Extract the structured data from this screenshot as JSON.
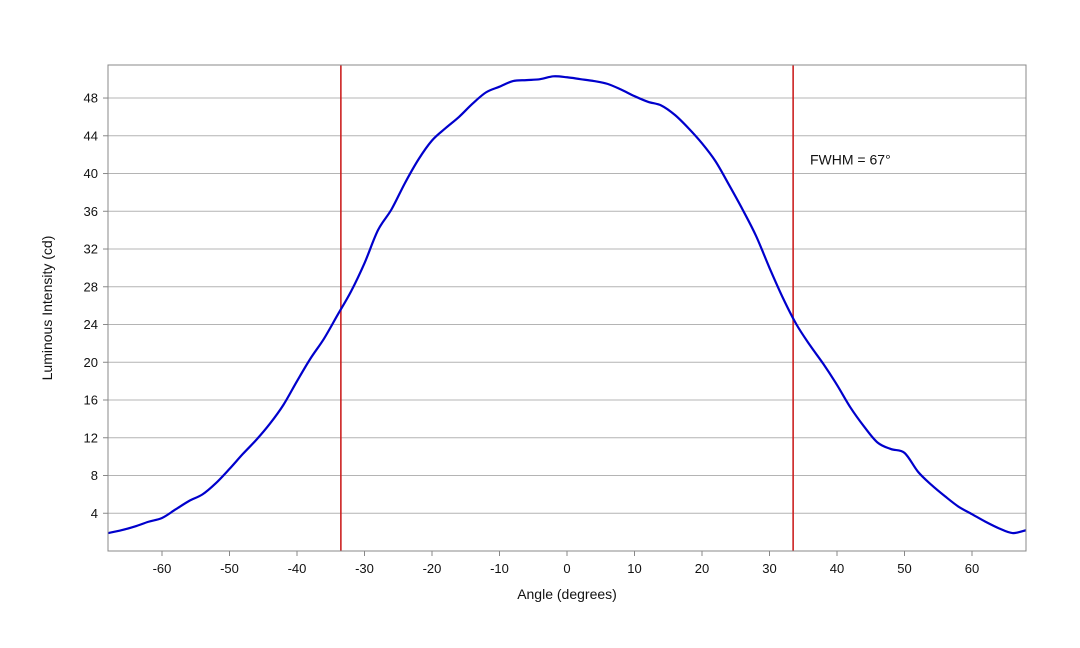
{
  "chart_data": {
    "type": "line",
    "title": "",
    "xlabel": "Angle (degrees)",
    "ylabel": "Luminous Intensity (cd)",
    "xlim": [
      -68,
      68
    ],
    "ylim": [
      0,
      51.5
    ],
    "x_ticks": [
      -60,
      -50,
      -40,
      -30,
      -20,
      -10,
      0,
      10,
      20,
      30,
      40,
      50,
      60
    ],
    "y_ticks": [
      4,
      8,
      12,
      16,
      20,
      24,
      28,
      32,
      36,
      40,
      44,
      48
    ],
    "grid": {
      "horizontal": true,
      "vertical": false
    },
    "series": [
      {
        "color": "#0000cc",
        "x": [
          -68,
          -66,
          -64,
          -62,
          -60,
          -58,
          -56,
          -54,
          -52,
          -50,
          -48,
          -46,
          -44,
          -42,
          -40,
          -38,
          -36,
          -34,
          -32,
          -30,
          -28,
          -26,
          -24,
          -22,
          -20,
          -18,
          -16,
          -14,
          -12,
          -10,
          -8,
          -6,
          -4,
          -2,
          0,
          2,
          4,
          6,
          8,
          10,
          12,
          14,
          16,
          18,
          20,
          22,
          24,
          26,
          28,
          30,
          32,
          34,
          36,
          38,
          40,
          42,
          44,
          46,
          48,
          50,
          52,
          54,
          56,
          58,
          60,
          62,
          64,
          66,
          68
        ],
        "y": [
          1.9,
          2.2,
          2.6,
          3.1,
          3.5,
          4.4,
          5.3,
          6.0,
          7.2,
          8.7,
          10.3,
          11.8,
          13.5,
          15.5,
          18.0,
          20.4,
          22.5,
          25.0,
          27.5,
          30.5,
          34.0,
          36.2,
          39.0,
          41.5,
          43.5,
          44.8,
          46.0,
          47.4,
          48.6,
          49.2,
          49.8,
          49.9,
          50.0,
          50.3,
          50.2,
          50.0,
          49.8,
          49.5,
          48.9,
          48.2,
          47.6,
          47.2,
          46.2,
          44.8,
          43.2,
          41.3,
          38.8,
          36.2,
          33.4,
          30.0,
          26.8,
          24.0,
          21.8,
          19.8,
          17.6,
          15.2,
          13.2,
          11.5,
          10.8,
          10.4,
          8.4,
          7.0,
          5.8,
          4.7,
          3.9,
          3.1,
          2.4,
          1.9,
          2.2
        ]
      }
    ],
    "markers": [
      {
        "x": -33.5,
        "color": "#cc2222"
      },
      {
        "x": 33.5,
        "color": "#cc2222"
      }
    ],
    "annotations": [
      {
        "text": "FWHM = 67°",
        "x": 36,
        "y": 41.5
      }
    ]
  }
}
